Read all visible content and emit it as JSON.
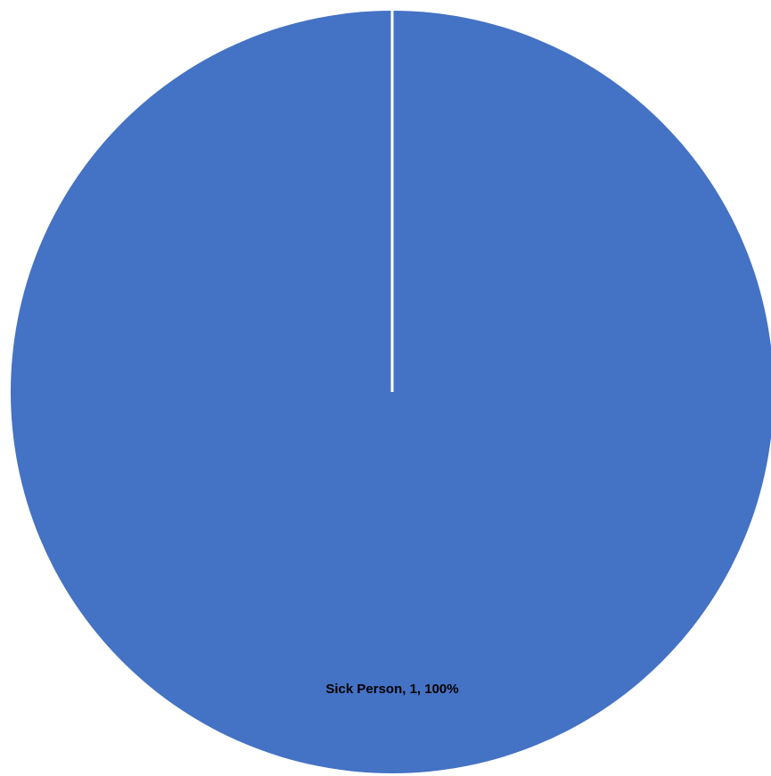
{
  "chart_data": {
    "type": "pie",
    "categories": [
      "Sick Person"
    ],
    "values": [
      1
    ],
    "percentages": [
      100
    ],
    "colors": [
      "#4472C4"
    ],
    "data_labels": [
      "Sick Person, 1, 100%"
    ],
    "title": "",
    "legend": "none",
    "start_angle": "top (12 o'clock), clockwise"
  }
}
